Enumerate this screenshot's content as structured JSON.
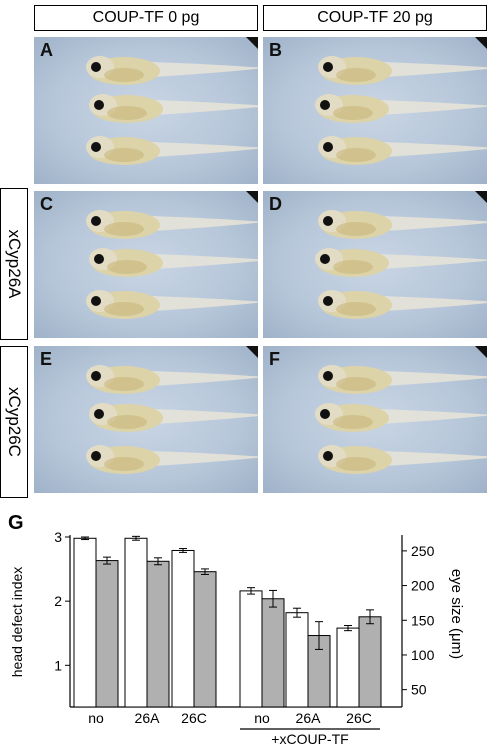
{
  "headers": {
    "col1": "COUP-TF 0 pg",
    "col2": "COUP-TF 20 pg"
  },
  "row_labels": {
    "row2": "xCyp26A",
    "row3": "xCyp26C"
  },
  "panels": [
    "A",
    "B",
    "C",
    "D",
    "E",
    "F"
  ],
  "chart_data": {
    "panel_label": "G",
    "type": "bar",
    "categories": [
      "no",
      "26A",
      "26C",
      "no",
      "26A",
      "26C"
    ],
    "group_label": "+xCOUP-TF",
    "ylabel_left": "head defect index",
    "ylabel_right": "eye size (μm)",
    "yticks_left": [
      "1",
      "2",
      "3"
    ],
    "yticks_right": [
      "50",
      "100",
      "150",
      "200",
      "250"
    ],
    "ylim_left": [
      0.35,
      3.0
    ],
    "ylim_right": [
      25,
      270
    ],
    "series": [
      {
        "color": "#ffffff",
        "axis": "left",
        "values": [
          2.98,
          2.98,
          2.79,
          2.16,
          1.82,
          1.58
        ],
        "errors": [
          0.02,
          0.03,
          0.03,
          0.05,
          0.07,
          0.04
        ]
      },
      {
        "color": "#b0b0b0",
        "axis": "right",
        "values": [
          236,
          235,
          220,
          181,
          128,
          155
        ],
        "errors": [
          5,
          5,
          4,
          12,
          20,
          10
        ]
      }
    ]
  }
}
